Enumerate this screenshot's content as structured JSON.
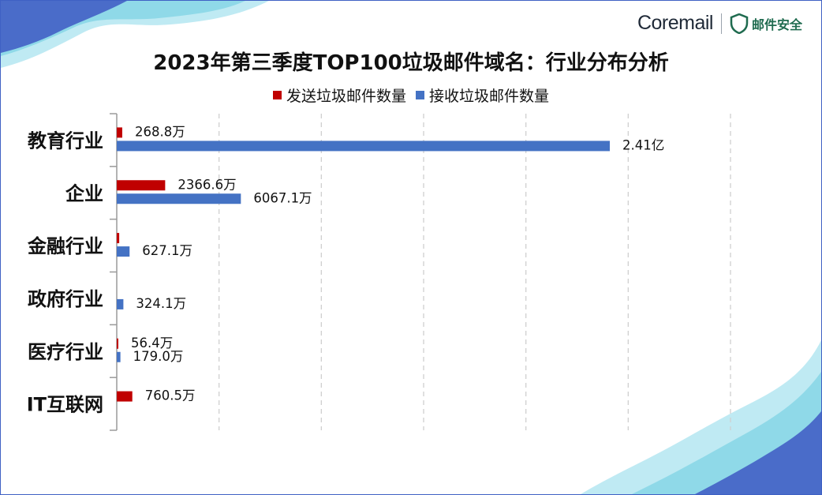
{
  "brand": {
    "product": "Coremail",
    "security_label": "邮件安全",
    "colors": {
      "frame": "#3f61c4",
      "wave_light": "#8fd9e8",
      "wave_dark": "#4a6cc9",
      "security_green": "#1f6b4f"
    }
  },
  "chart_data": {
    "type": "bar",
    "orientation": "horizontal",
    "title": "2023年第三季度TOP100垃圾邮件域名：行业分布分析",
    "categories": [
      "教育行业",
      "企业",
      "金融行业",
      "政府行业",
      "医疗行业",
      "IT互联网"
    ],
    "unit": "万",
    "series": [
      {
        "name": "发送垃圾邮件数量",
        "color": "#c00000",
        "values": [
          268.8,
          2366.6,
          120,
          0,
          56.4,
          760.5
        ],
        "labels": [
          "268.8万",
          "2366.6万",
          "",
          "",
          "56.4万",
          "760.5万"
        ]
      },
      {
        "name": "接收垃圾邮件数量",
        "color": "#4472c4",
        "values": [
          24100,
          6067.1,
          627.1,
          324.1,
          179.0,
          0
        ],
        "labels": [
          "2.41亿",
          "6067.1万",
          "627.1万",
          "324.1万",
          "179.0万",
          ""
        ]
      }
    ],
    "xlim": [
      0,
      30000
    ],
    "grid": "vertical-dashed",
    "legend_position": "top"
  }
}
